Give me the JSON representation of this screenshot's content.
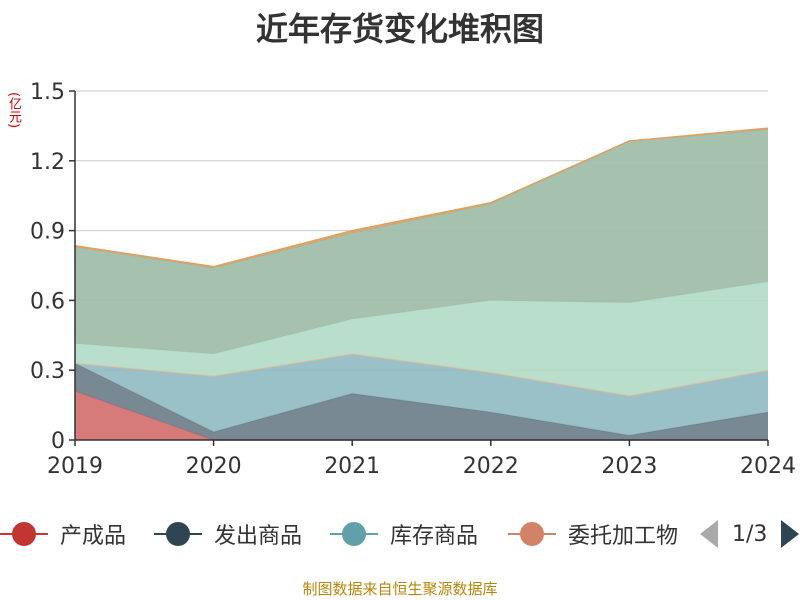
{
  "title": "近年存货变化堆积图",
  "unit_label": "(亿元)",
  "source": "制图数据来自恒生聚源数据库",
  "legend": {
    "items": [
      {
        "label": "产成品",
        "color": "#c23531"
      },
      {
        "label": "发出商品",
        "color": "#2f4554"
      },
      {
        "label": "库存商品",
        "color": "#61a0a8"
      },
      {
        "label": "委托加工物",
        "color": "#d48265"
      }
    ],
    "page": "1/3"
  },
  "chart_data": {
    "type": "area",
    "stacked": true,
    "title": "近年存货变化堆积图",
    "ylabel": "(亿元)",
    "x": [
      "2019",
      "2020",
      "2021",
      "2022",
      "2023",
      "2024"
    ],
    "ylim": [
      0,
      1.5
    ],
    "yticks": [
      "0",
      "0.3",
      "0.6",
      "0.9",
      "1.2",
      "1.5"
    ],
    "grid": true,
    "legend_position": "bottom",
    "series": [
      {
        "name": "产成品",
        "color": "#d46f6f",
        "values": [
          0.21,
          0.0,
          0.0,
          0.0,
          0.0,
          0.0
        ]
      },
      {
        "name": "发出商品",
        "color": "#6e7f8a",
        "values": [
          0.12,
          0.035,
          0.2,
          0.12,
          0.02,
          0.12
        ]
      },
      {
        "name": "库存商品",
        "color": "#91bcc3",
        "values": [
          0.0,
          0.24,
          0.17,
          0.17,
          0.17,
          0.18
        ]
      },
      {
        "name": "委托加工物",
        "color": "#edb08f",
        "values": [
          0.0,
          0.0,
          0.0,
          0.0,
          0.0,
          0.0
        ]
      },
      {
        "color": "#b3dbc8",
        "values": [
          0.085,
          0.095,
          0.15,
          0.31,
          0.4,
          0.38
        ]
      },
      {
        "color": "#9fbca8",
        "values": [
          0.415,
          0.37,
          0.37,
          0.415,
          0.695,
          0.655
        ]
      },
      {
        "color": "#e0a060",
        "values": [
          0.005,
          0.005,
          0.01,
          0.005,
          0.0,
          0.005
        ]
      }
    ]
  }
}
